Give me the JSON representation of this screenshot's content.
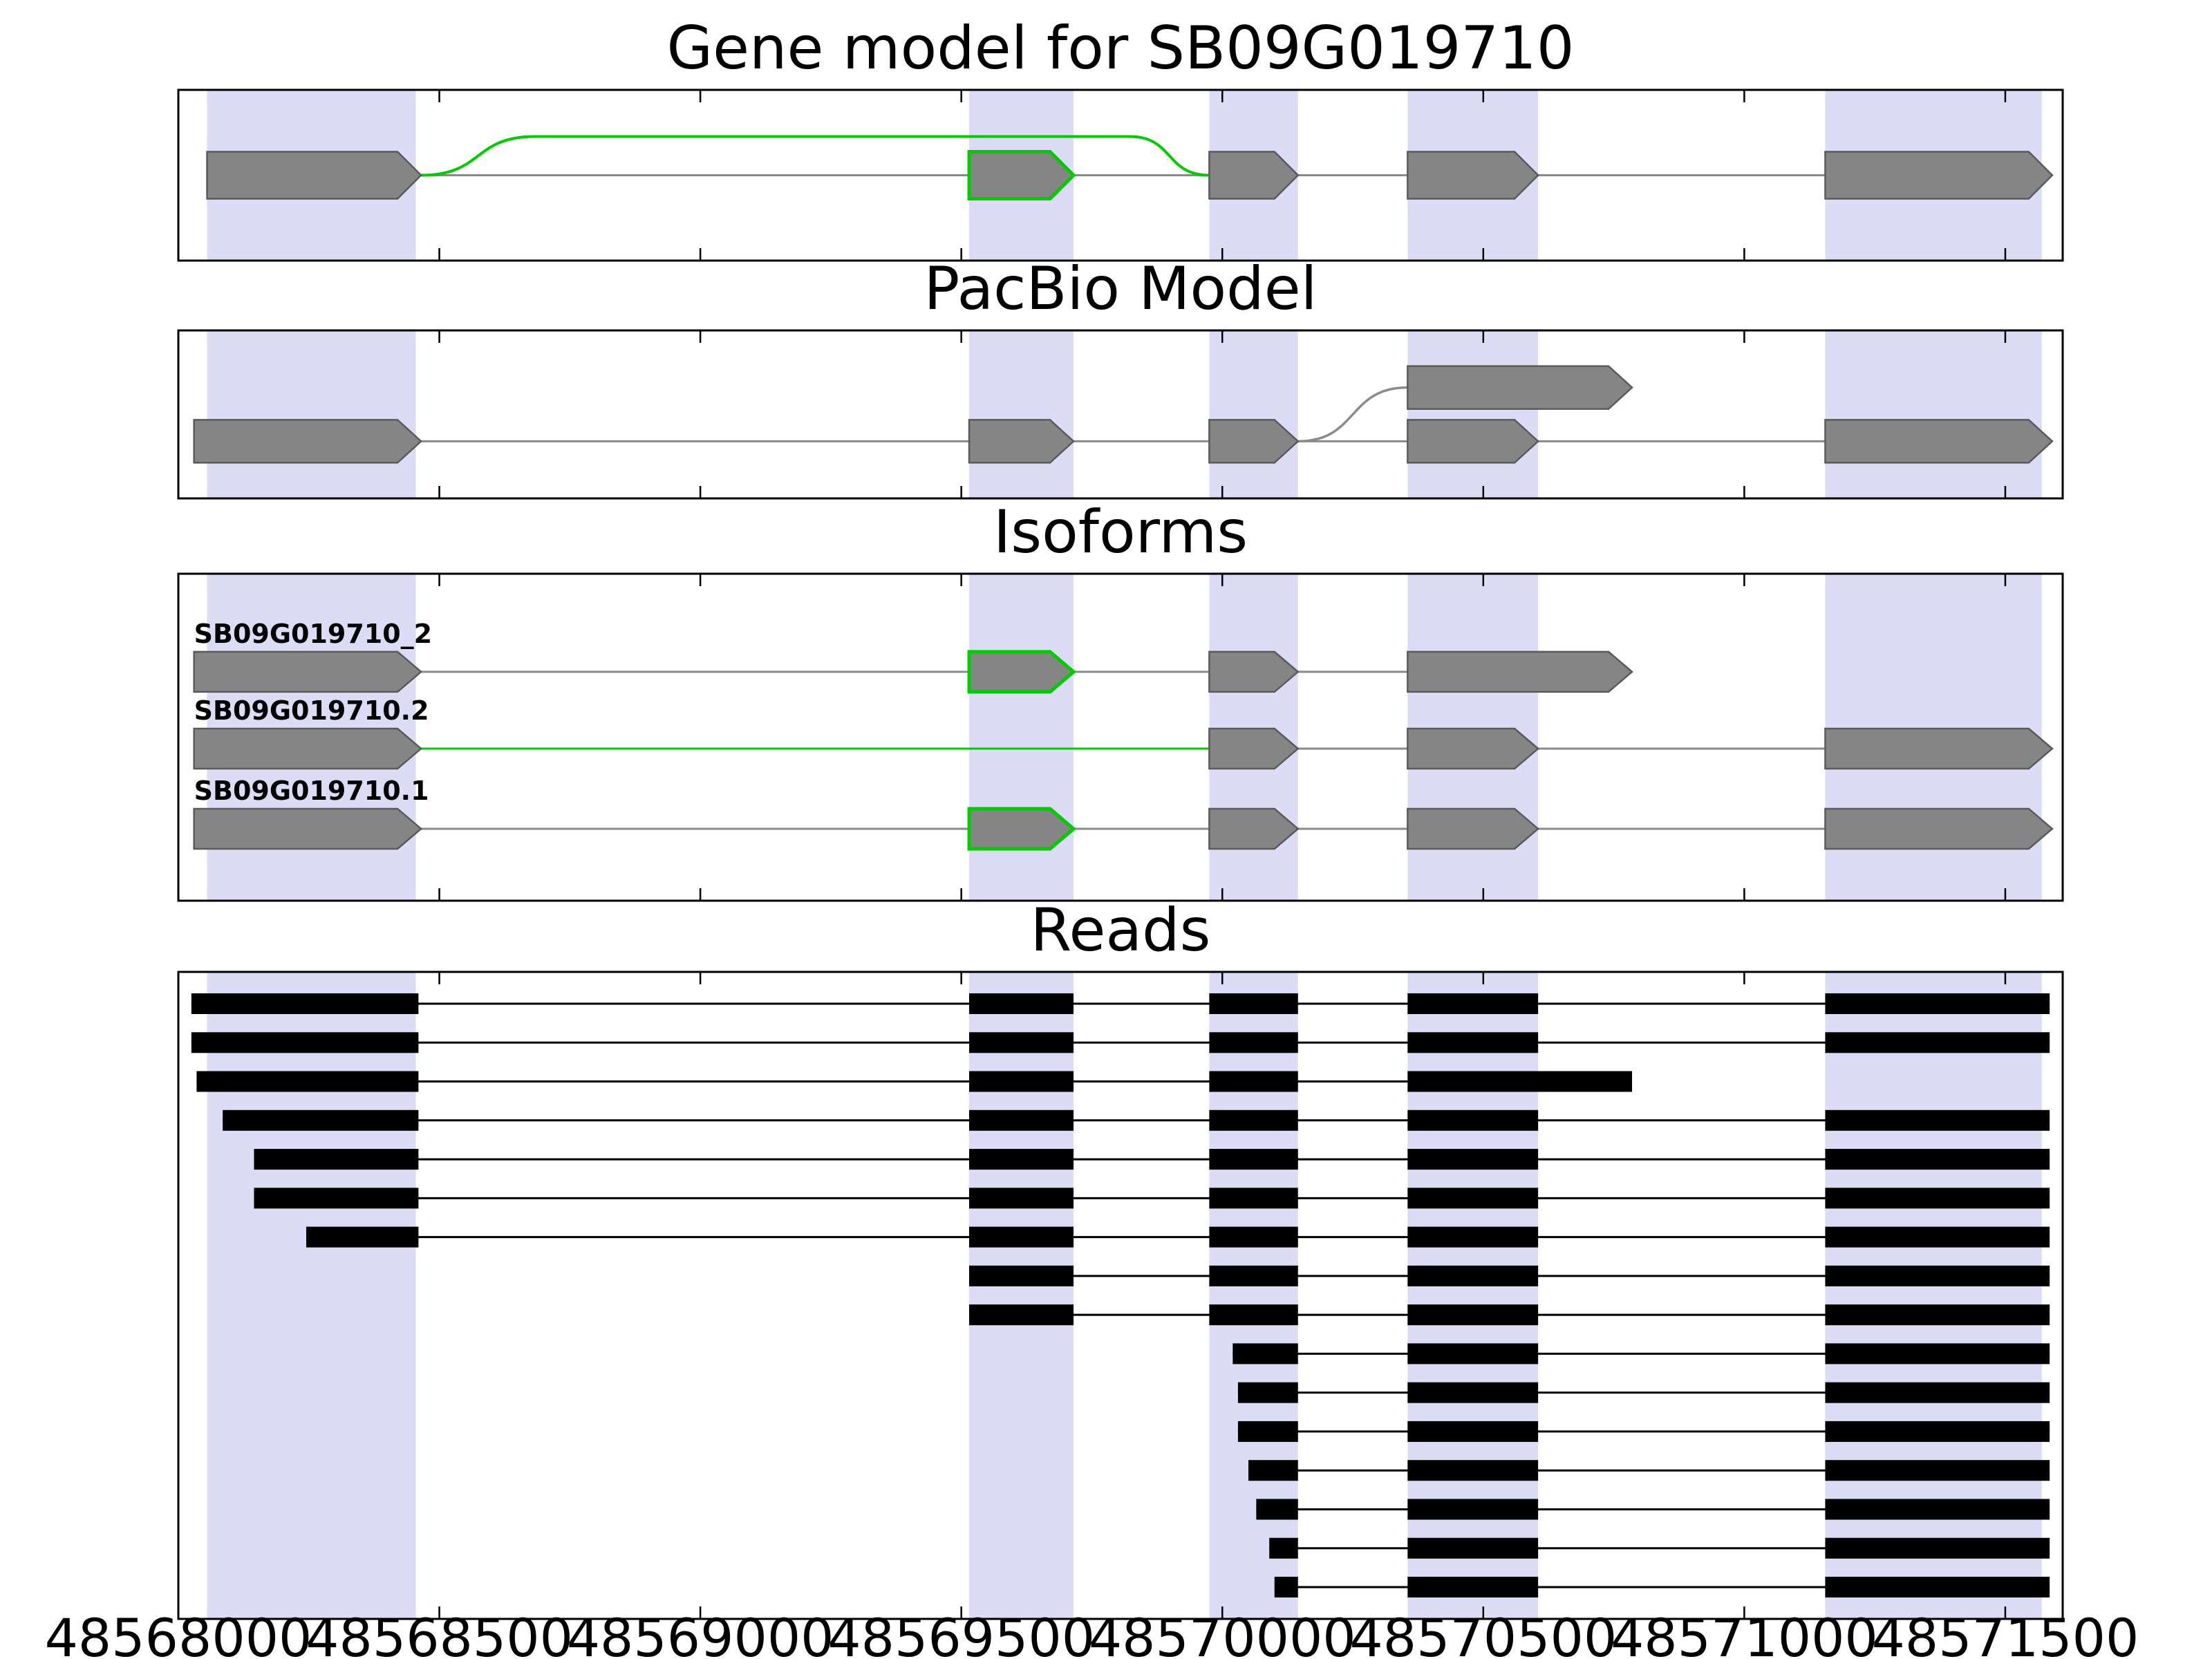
{
  "page": {
    "background": "#ffffff"
  },
  "chart_data": {
    "type": "gene-track-figure",
    "axis": {
      "xmin": 48568000,
      "xmax": 48571610,
      "ticks": [
        48568000,
        48568500,
        48569000,
        48569500,
        48570000,
        48570500,
        48571000,
        48571500
      ],
      "tick_labels": [
        "48568000",
        "48568500",
        "48569000",
        "48569500",
        "48570000",
        "48570500",
        "48571000",
        "48571500"
      ]
    },
    "highlight_regions": [
      [
        48568055,
        48568455
      ],
      [
        48569515,
        48569715
      ],
      [
        48569975,
        48570145
      ],
      [
        48570355,
        48570605
      ],
      [
        48571155,
        48571570
      ]
    ],
    "colors": {
      "highlight": "#dcdcf6",
      "exon_fill": "#858585",
      "exon_edge": "#5a5a5a",
      "green": "#00cc00",
      "intron_line": "#8a8a8a",
      "read": "#000000",
      "panel_border": "#000000"
    },
    "panels": [
      {
        "title": "Gene model for SB09G019710",
        "kind": "model",
        "rows": [
          {
            "y": 0.5,
            "lines": [
              {
                "from": 48568465,
                "to": 48571160,
                "color": "intron"
              }
            ],
            "exons": [
              {
                "start": 48568055,
                "end": 48568465,
                "edge": "gray"
              },
              {
                "start": 48569515,
                "end": 48569715,
                "edge": "green"
              },
              {
                "start": 48569975,
                "end": 48570145,
                "edge": "gray"
              },
              {
                "start": 48570355,
                "end": 48570605,
                "edge": "gray"
              },
              {
                "start": 48571155,
                "end": 48571590,
                "edge": "gray"
              }
            ]
          }
        ],
        "arcs": [
          {
            "from": 48568465,
            "to": 48569975,
            "row": 0,
            "rise": 56,
            "color": "green"
          }
        ],
        "branches": []
      },
      {
        "title": "PacBio Model",
        "kind": "model",
        "rows": [
          {
            "y": 0.66,
            "lines": [
              {
                "from": 48568465,
                "to": 48571160,
                "color": "intron"
              }
            ],
            "exons": [
              {
                "start": 48568030,
                "end": 48568465,
                "edge": "gray"
              },
              {
                "start": 48569515,
                "end": 48569715,
                "edge": "gray"
              },
              {
                "start": 48569975,
                "end": 48570145,
                "edge": "gray"
              },
              {
                "start": 48570355,
                "end": 48570605,
                "edge": "gray"
              },
              {
                "start": 48571155,
                "end": 48571590,
                "edge": "gray"
              }
            ]
          },
          {
            "y": 0.34,
            "lines": [],
            "exons": [
              {
                "start": 48570355,
                "end": 48570785,
                "edge": "gray"
              }
            ]
          }
        ],
        "arcs": [],
        "branches": [
          {
            "from": 48570145,
            "from_row": 0,
            "to": 48570355,
            "to_row": 1,
            "color": "intron"
          }
        ]
      },
      {
        "title": "Isoforms",
        "kind": "model",
        "rows": [
          {
            "y": 0.3,
            "label": "SB09G019710_2",
            "lines": [
              {
                "from": 48568465,
                "to": 48570355,
                "color": "intron"
              }
            ],
            "exons": [
              {
                "start": 48568030,
                "end": 48568465,
                "edge": "gray"
              },
              {
                "start": 48569515,
                "end": 48569715,
                "edge": "green"
              },
              {
                "start": 48569975,
                "end": 48570145,
                "edge": "gray"
              },
              {
                "start": 48570355,
                "end": 48570785,
                "edge": "gray"
              }
            ]
          },
          {
            "y": 0.535,
            "label": "SB09G019710.2",
            "lines": [
              {
                "from": 48568465,
                "to": 48569975,
                "color": "green"
              },
              {
                "from": 48569975,
                "to": 48571160,
                "color": "intron"
              }
            ],
            "exons": [
              {
                "start": 48568030,
                "end": 48568465,
                "edge": "gray"
              },
              {
                "start": 48569975,
                "end": 48570145,
                "edge": "gray"
              },
              {
                "start": 48570355,
                "end": 48570605,
                "edge": "gray"
              },
              {
                "start": 48571155,
                "end": 48571590,
                "edge": "gray"
              }
            ]
          },
          {
            "y": 0.78,
            "label": "SB09G019710.1",
            "lines": [
              {
                "from": 48568465,
                "to": 48571160,
                "color": "intron"
              }
            ],
            "exons": [
              {
                "start": 48568030,
                "end": 48568465,
                "edge": "gray"
              },
              {
                "start": 48569515,
                "end": 48569715,
                "edge": "green"
              },
              {
                "start": 48569975,
                "end": 48570145,
                "edge": "gray"
              },
              {
                "start": 48570355,
                "end": 48570605,
                "edge": "gray"
              },
              {
                "start": 48571155,
                "end": 48571590,
                "edge": "gray"
              }
            ]
          }
        ],
        "arcs": [],
        "branches": []
      },
      {
        "title": "Reads",
        "kind": "reads",
        "reads": [
          [
            [
              48568025,
              48568460
            ],
            [
              48569515,
              48569715
            ],
            [
              48569975,
              48570145
            ],
            [
              48570355,
              48570605
            ],
            [
              48571155,
              48571585
            ]
          ],
          [
            [
              48568025,
              48568460
            ],
            [
              48569515,
              48569715
            ],
            [
              48569975,
              48570145
            ],
            [
              48570355,
              48570605
            ],
            [
              48571155,
              48571585
            ]
          ],
          [
            [
              48568035,
              48568460
            ],
            [
              48569515,
              48569715
            ],
            [
              48569975,
              48570145
            ],
            [
              48570355,
              48570785
            ]
          ],
          [
            [
              48568085,
              48568460
            ],
            [
              48569515,
              48569715
            ],
            [
              48569975,
              48570145
            ],
            [
              48570355,
              48570605
            ],
            [
              48571155,
              48571585
            ]
          ],
          [
            [
              48568145,
              48568460
            ],
            [
              48569515,
              48569715
            ],
            [
              48569975,
              48570145
            ],
            [
              48570355,
              48570605
            ],
            [
              48571155,
              48571585
            ]
          ],
          [
            [
              48568145,
              48568460
            ],
            [
              48569515,
              48569715
            ],
            [
              48569975,
              48570145
            ],
            [
              48570355,
              48570605
            ],
            [
              48571155,
              48571585
            ]
          ],
          [
            [
              48568245,
              48568460
            ],
            [
              48569515,
              48569715
            ],
            [
              48569975,
              48570145
            ],
            [
              48570355,
              48570605
            ],
            [
              48571155,
              48571585
            ]
          ],
          [
            [
              48569515,
              48569715
            ],
            [
              48569975,
              48570145
            ],
            [
              48570355,
              48570605
            ],
            [
              48571155,
              48571585
            ]
          ],
          [
            [
              48569515,
              48569715
            ],
            [
              48569975,
              48570145
            ],
            [
              48570355,
              48570605
            ],
            [
              48571155,
              48571585
            ]
          ],
          [
            [
              48570020,
              48570145
            ],
            [
              48570355,
              48570605
            ],
            [
              48571155,
              48571585
            ]
          ],
          [
            [
              48570030,
              48570145
            ],
            [
              48570355,
              48570605
            ],
            [
              48571155,
              48571585
            ]
          ],
          [
            [
              48570030,
              48570145
            ],
            [
              48570355,
              48570605
            ],
            [
              48571155,
              48571585
            ]
          ],
          [
            [
              48570050,
              48570145
            ],
            [
              48570355,
              48570605
            ],
            [
              48571155,
              48571585
            ]
          ],
          [
            [
              48570065,
              48570145
            ],
            [
              48570355,
              48570605
            ],
            [
              48571155,
              48571585
            ]
          ],
          [
            [
              48570090,
              48570145
            ],
            [
              48570355,
              48570605
            ],
            [
              48571155,
              48571585
            ]
          ],
          [
            [
              48570100,
              48570145
            ],
            [
              48570355,
              48570605
            ],
            [
              48571155,
              48571585
            ]
          ]
        ]
      }
    ]
  }
}
